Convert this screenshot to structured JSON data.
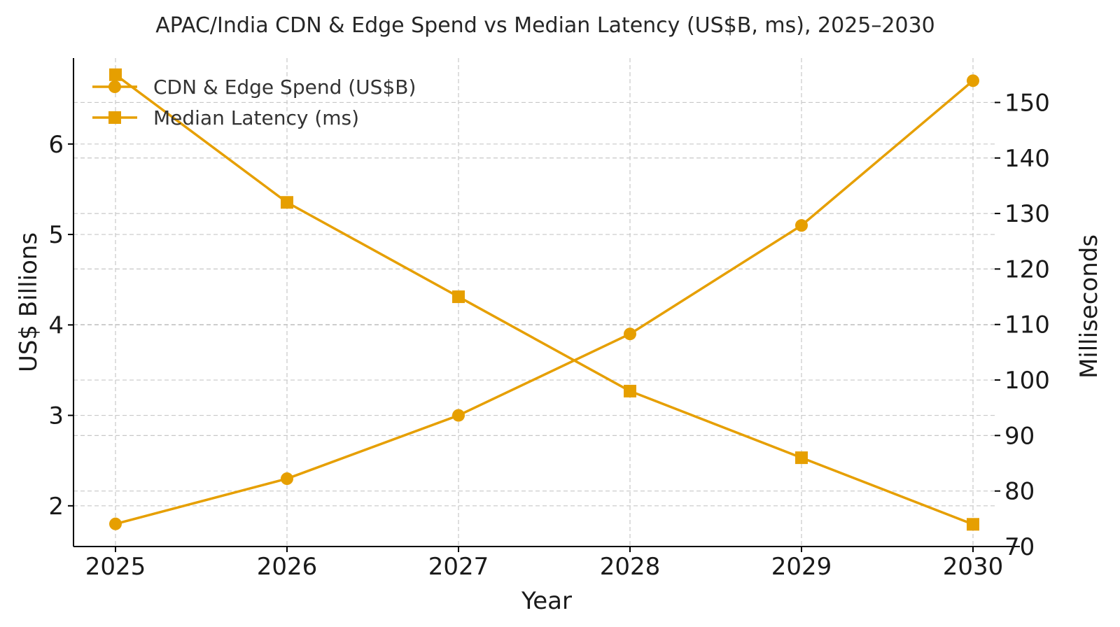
{
  "chart_data": {
    "type": "line",
    "title": "APAC/India CDN & Edge Spend vs Median Latency (US$B, ms), 2025–2030",
    "xlabel": "Year",
    "ylabel_left": "US$ Billions",
    "ylabel_right": "Milliseconds",
    "x": [
      "2025",
      "2026",
      "2027",
      "2028",
      "2029",
      "2030"
    ],
    "ylim_left": [
      1.55,
      6.95
    ],
    "yticks_left": [
      "2",
      "3",
      "4",
      "5",
      "6"
    ],
    "ylim_right": [
      70,
      158
    ],
    "yticks_right": [
      "70",
      "80",
      "90",
      "100",
      "110",
      "120",
      "130",
      "140",
      "150"
    ],
    "series": [
      {
        "name": "CDN & Edge Spend (US$B)",
        "axis": "left",
        "marker": "circle",
        "color": "#E69F00",
        "values": [
          1.8,
          2.3,
          3.0,
          3.9,
          5.1,
          6.7
        ]
      },
      {
        "name": "Median Latency (ms)",
        "axis": "right",
        "marker": "square",
        "color": "#E69F00",
        "values": [
          155,
          132,
          115,
          98,
          86,
          74
        ]
      }
    ],
    "grid": true,
    "legend": "top-left"
  }
}
